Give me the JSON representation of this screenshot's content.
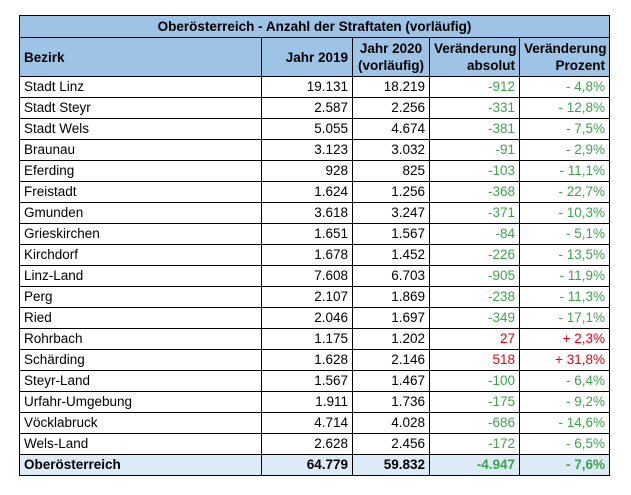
{
  "title": "Oberösterreich - Anzahl der Straftaten (vorläufig)",
  "headers": {
    "bezirk": "Bezirk",
    "jahr2019": "Jahr 2019",
    "jahr2020_line1": "Jahr 2020",
    "jahr2020_line2": "(vorläufig)",
    "abs_line1": "Veränderung",
    "abs_line2": "absolut",
    "pct_line1": "Veränderung",
    "pct_line2": "Prozent"
  },
  "rows": [
    {
      "bezirk": "Stadt Linz",
      "y2019": "19.131",
      "y2020": "18.219",
      "abs": "-912",
      "pct": "- 4,8%",
      "trend": "down"
    },
    {
      "bezirk": "Stadt Steyr",
      "y2019": "2.587",
      "y2020": "2.256",
      "abs": "-331",
      "pct": "- 12,8%",
      "trend": "down"
    },
    {
      "bezirk": "Stadt Wels",
      "y2019": "5.055",
      "y2020": "4.674",
      "abs": "-381",
      "pct": "- 7,5%",
      "trend": "down"
    },
    {
      "bezirk": "Braunau",
      "y2019": "3.123",
      "y2020": "3.032",
      "abs": "-91",
      "pct": "- 2,9%",
      "trend": "down"
    },
    {
      "bezirk": "Eferding",
      "y2019": "928",
      "y2020": "825",
      "abs": "-103",
      "pct": "- 11,1%",
      "trend": "down"
    },
    {
      "bezirk": "Freistadt",
      "y2019": "1.624",
      "y2020": "1.256",
      "abs": "-368",
      "pct": "- 22,7%",
      "trend": "down"
    },
    {
      "bezirk": "Gmunden",
      "y2019": "3.618",
      "y2020": "3.247",
      "abs": "-371",
      "pct": "- 10,3%",
      "trend": "down"
    },
    {
      "bezirk": "Grieskirchen",
      "y2019": "1.651",
      "y2020": "1.567",
      "abs": "-84",
      "pct": "- 5,1%",
      "trend": "down"
    },
    {
      "bezirk": "Kirchdorf",
      "y2019": "1.678",
      "y2020": "1.452",
      "abs": "-226",
      "pct": "- 13,5%",
      "trend": "down"
    },
    {
      "bezirk": "Linz-Land",
      "y2019": "7.608",
      "y2020": "6.703",
      "abs": "-905",
      "pct": "- 11,9%",
      "trend": "down"
    },
    {
      "bezirk": "Perg",
      "y2019": "2.107",
      "y2020": "1.869",
      "abs": "-238",
      "pct": "- 11,3%",
      "trend": "down"
    },
    {
      "bezirk": "Ried",
      "y2019": "2.046",
      "y2020": "1.697",
      "abs": "-349",
      "pct": "- 17,1%",
      "trend": "down"
    },
    {
      "bezirk": "Rohrbach",
      "y2019": "1.175",
      "y2020": "1.202",
      "abs": "27",
      "pct": "+ 2,3%",
      "trend": "up"
    },
    {
      "bezirk": "Schärding",
      "y2019": "1.628",
      "y2020": "2.146",
      "abs": "518",
      "pct": "+ 31,8%",
      "trend": "up"
    },
    {
      "bezirk": "Steyr-Land",
      "y2019": "1.567",
      "y2020": "1.467",
      "abs": "-100",
      "pct": "- 6,4%",
      "trend": "down"
    },
    {
      "bezirk": "Urfahr-Umgebung",
      "y2019": "1.911",
      "y2020": "1.736",
      "abs": "-175",
      "pct": "- 9,2%",
      "trend": "down"
    },
    {
      "bezirk": "Vöcklabruck",
      "y2019": "4.714",
      "y2020": "4.028",
      "abs": "-686",
      "pct": "- 14,6%",
      "trend": "down"
    },
    {
      "bezirk": "Wels-Land",
      "y2019": "2.628",
      "y2020": "2.456",
      "abs": "-172",
      "pct": "- 6,5%",
      "trend": "down"
    }
  ],
  "total": {
    "bezirk": "Oberösterreich",
    "y2019": "64.779",
    "y2020": "59.832",
    "abs": "-4.947",
    "pct": "- 7,6%"
  },
  "colors": {
    "header_bg": "#9dc3e6",
    "total_bg": "#ddebf7",
    "decrease": "#3fa34d",
    "increase": "#e8000d"
  }
}
